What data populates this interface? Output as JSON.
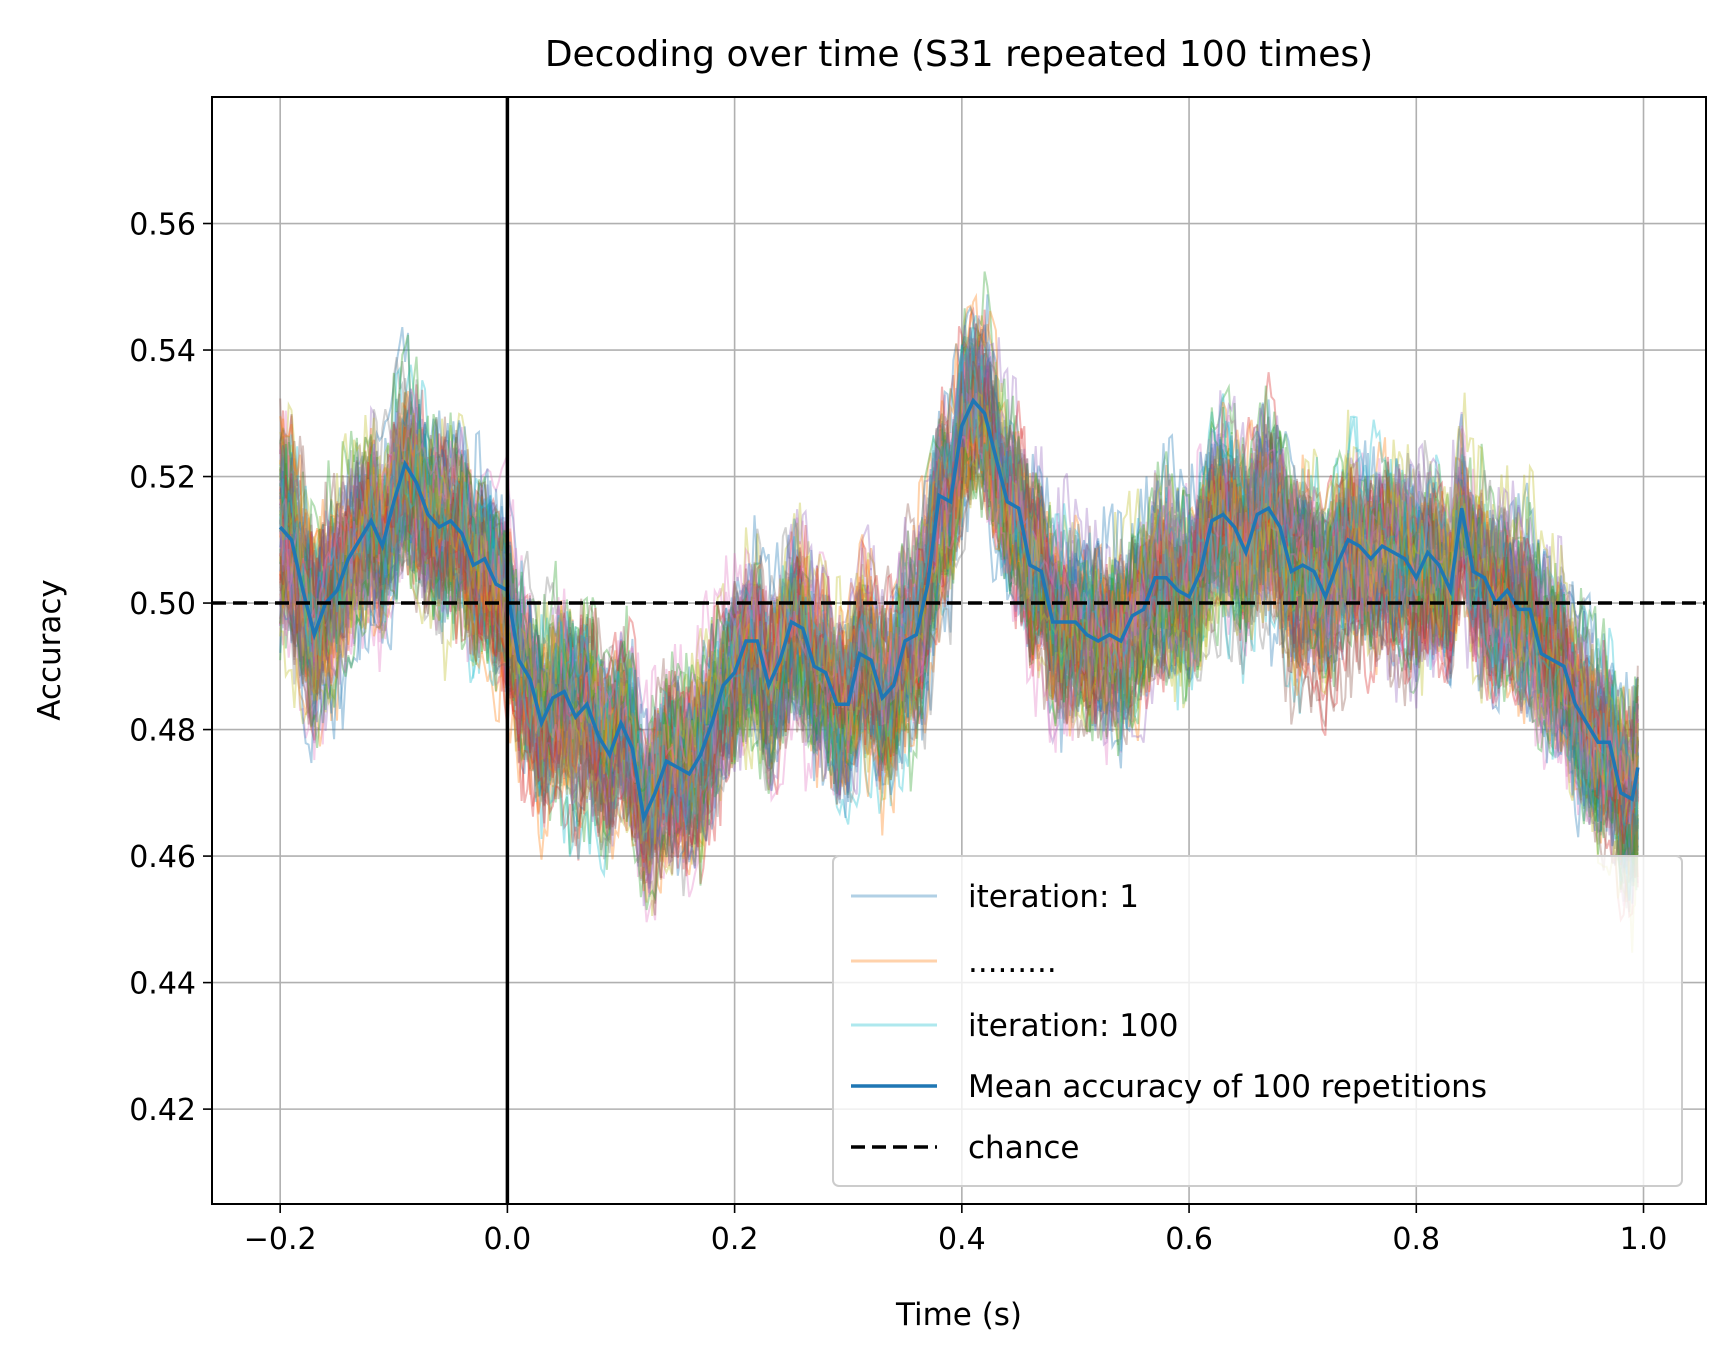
{
  "chart_data": {
    "type": "line",
    "title": "Decoding over time (S31 repeated 100 times)",
    "xlabel": "Time (s)",
    "ylabel": "Accuracy",
    "xlim": [
      -0.26,
      1.055
    ],
    "ylim": [
      0.405,
      0.58
    ],
    "xticks": [
      -0.2,
      0.0,
      0.2,
      0.4,
      0.6,
      0.8,
      1.0
    ],
    "xtick_labels": [
      "−0.2",
      "0.0",
      "0.2",
      "0.4",
      "0.6",
      "0.8",
      "1.0"
    ],
    "yticks": [
      0.42,
      0.44,
      0.46,
      0.48,
      0.5,
      0.52,
      0.54,
      0.56
    ],
    "ytick_labels": [
      "0.42",
      "0.44",
      "0.46",
      "0.48",
      "0.50",
      "0.52",
      "0.54",
      "0.56"
    ],
    "grid": true,
    "legend_position": "lower-right",
    "iterations": 100,
    "iteration_colors": [
      "#1f77b4",
      "#ff7f0e",
      "#2ca02c",
      "#d62728",
      "#9467bd",
      "#8c564b",
      "#e377c2",
      "#7f7f7f",
      "#bcbd22",
      "#17becf"
    ],
    "mean_series": {
      "name": "Mean accuracy of 100 repetitions",
      "color": "#1f77b4",
      "x": [
        -0.2,
        -0.19,
        -0.18,
        -0.17,
        -0.16,
        -0.15,
        -0.14,
        -0.13,
        -0.12,
        -0.11,
        -0.1,
        -0.09,
        -0.08,
        -0.07,
        -0.06,
        -0.05,
        -0.04,
        -0.03,
        -0.02,
        -0.01,
        0.0,
        0.01,
        0.02,
        0.03,
        0.04,
        0.05,
        0.06,
        0.07,
        0.08,
        0.09,
        0.1,
        0.11,
        0.12,
        0.13,
        0.14,
        0.15,
        0.16,
        0.17,
        0.18,
        0.19,
        0.2,
        0.21,
        0.22,
        0.23,
        0.24,
        0.25,
        0.26,
        0.27,
        0.28,
        0.29,
        0.3,
        0.31,
        0.32,
        0.33,
        0.34,
        0.35,
        0.36,
        0.37,
        0.38,
        0.39,
        0.4,
        0.41,
        0.42,
        0.43,
        0.44,
        0.45,
        0.46,
        0.47,
        0.48,
        0.49,
        0.5,
        0.51,
        0.52,
        0.53,
        0.54,
        0.55,
        0.56,
        0.57,
        0.58,
        0.59,
        0.6,
        0.61,
        0.62,
        0.63,
        0.64,
        0.65,
        0.66,
        0.67,
        0.68,
        0.69,
        0.7,
        0.71,
        0.72,
        0.73,
        0.74,
        0.75,
        0.76,
        0.77,
        0.78,
        0.79,
        0.8,
        0.81,
        0.82,
        0.83,
        0.84,
        0.85,
        0.86,
        0.87,
        0.88,
        0.89,
        0.9,
        0.91,
        0.92,
        0.93,
        0.94,
        0.95,
        0.96,
        0.97,
        0.98,
        0.99,
        0.995
      ],
      "y": [
        0.512,
        0.51,
        0.502,
        0.495,
        0.5,
        0.502,
        0.507,
        0.51,
        0.513,
        0.509,
        0.516,
        0.522,
        0.519,
        0.514,
        0.512,
        0.513,
        0.511,
        0.506,
        0.507,
        0.503,
        0.502,
        0.491,
        0.488,
        0.481,
        0.485,
        0.486,
        0.482,
        0.484,
        0.479,
        0.476,
        0.481,
        0.477,
        0.466,
        0.47,
        0.475,
        0.474,
        0.473,
        0.476,
        0.481,
        0.487,
        0.489,
        0.494,
        0.494,
        0.487,
        0.491,
        0.497,
        0.496,
        0.49,
        0.489,
        0.484,
        0.484,
        0.492,
        0.491,
        0.485,
        0.487,
        0.494,
        0.495,
        0.503,
        0.517,
        0.516,
        0.528,
        0.532,
        0.53,
        0.523,
        0.516,
        0.515,
        0.506,
        0.505,
        0.497,
        0.497,
        0.497,
        0.495,
        0.494,
        0.495,
        0.494,
        0.498,
        0.499,
        0.504,
        0.504,
        0.502,
        0.501,
        0.505,
        0.513,
        0.514,
        0.512,
        0.508,
        0.514,
        0.515,
        0.512,
        0.505,
        0.506,
        0.505,
        0.501,
        0.506,
        0.51,
        0.509,
        0.507,
        0.509,
        0.508,
        0.507,
        0.504,
        0.508,
        0.506,
        0.502,
        0.515,
        0.505,
        0.504,
        0.5,
        0.502,
        0.499,
        0.499,
        0.492,
        0.491,
        0.49,
        0.484,
        0.481,
        0.478,
        0.478,
        0.47,
        0.469,
        0.474
      ]
    },
    "chance": {
      "name": "chance",
      "value": 0.5,
      "color": "#000000"
    },
    "onset_line_x": 0.0,
    "legend": [
      {
        "label": "iteration: 1",
        "color": "#1f77b4",
        "style": "faint"
      },
      {
        "label": ".........",
        "color": "#ff7f0e",
        "style": "faint"
      },
      {
        "label": "iteration: 100",
        "color": "#17becf",
        "style": "faint"
      },
      {
        "label": "Mean accuracy of 100 repetitions",
        "color": "#1f77b4",
        "style": "solid"
      },
      {
        "label": "chance",
        "color": "#000000",
        "style": "dashed"
      }
    ]
  }
}
